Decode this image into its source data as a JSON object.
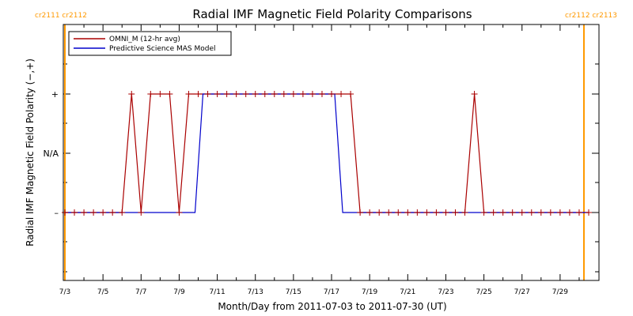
{
  "chart_data": {
    "type": "line",
    "title": "Radial IMF Magnetic Field Polarity Comparisons",
    "xlabel": "Month/Day from 2011-07-03 to 2011-07-30 (UT)",
    "ylabel": "Radial IMF Magnetic Field Polarity (−,+)",
    "xlim": [
      "2011-07-03T00:00",
      "2011-07-30T12:00"
    ],
    "x_ticks": [
      "7/3",
      "7/5",
      "7/7",
      "7/9",
      "7/11",
      "7/13",
      "7/15",
      "7/17",
      "7/19",
      "7/21",
      "7/23",
      "7/25",
      "7/27",
      "7/29"
    ],
    "y_categories": [
      "–",
      "N/A",
      "+"
    ],
    "y_tick_labels": [
      "–",
      "N/A",
      "+"
    ],
    "rotation_markers": {
      "left_label": "cr2111 cr2112",
      "right_label": "cr2112 cr2113",
      "color": "#ff9900",
      "x": [
        "2011-07-03T00:00",
        "2011-07-30T06:00"
      ]
    },
    "legend": {
      "placement": "top-left"
    },
    "series": [
      {
        "name": "OMNI_M (12-hr avg)",
        "color": "#aa0000",
        "marker": "plus",
        "points": [
          [
            "2011-07-03T00:00",
            "–"
          ],
          [
            "2011-07-03T12:00",
            "–"
          ],
          [
            "2011-07-04T00:00",
            "–"
          ],
          [
            "2011-07-04T12:00",
            "–"
          ],
          [
            "2011-07-05T00:00",
            "–"
          ],
          [
            "2011-07-05T12:00",
            "–"
          ],
          [
            "2011-07-06T00:00",
            "–"
          ],
          [
            "2011-07-06T12:00",
            "+"
          ],
          [
            "2011-07-07T00:00",
            "–"
          ],
          [
            "2011-07-07T12:00",
            "+"
          ],
          [
            "2011-07-08T00:00",
            "+"
          ],
          [
            "2011-07-08T12:00",
            "+"
          ],
          [
            "2011-07-09T00:00",
            "–"
          ],
          [
            "2011-07-09T12:00",
            "+"
          ],
          [
            "2011-07-10T00:00",
            "+"
          ],
          [
            "2011-07-10T12:00",
            "+"
          ],
          [
            "2011-07-11T00:00",
            "+"
          ],
          [
            "2011-07-11T12:00",
            "+"
          ],
          [
            "2011-07-12T00:00",
            "+"
          ],
          [
            "2011-07-12T12:00",
            "+"
          ],
          [
            "2011-07-13T00:00",
            "+"
          ],
          [
            "2011-07-13T12:00",
            "+"
          ],
          [
            "2011-07-14T00:00",
            "+"
          ],
          [
            "2011-07-14T12:00",
            "+"
          ],
          [
            "2011-07-15T00:00",
            "+"
          ],
          [
            "2011-07-15T12:00",
            "+"
          ],
          [
            "2011-07-16T00:00",
            "+"
          ],
          [
            "2011-07-16T12:00",
            "+"
          ],
          [
            "2011-07-17T00:00",
            "+"
          ],
          [
            "2011-07-17T12:00",
            "+"
          ],
          [
            "2011-07-18T00:00",
            "+"
          ],
          [
            "2011-07-18T12:00",
            "–"
          ],
          [
            "2011-07-19T00:00",
            "–"
          ],
          [
            "2011-07-19T12:00",
            "–"
          ],
          [
            "2011-07-20T00:00",
            "–"
          ],
          [
            "2011-07-20T12:00",
            "–"
          ],
          [
            "2011-07-21T00:00",
            "–"
          ],
          [
            "2011-07-21T12:00",
            "–"
          ],
          [
            "2011-07-22T00:00",
            "–"
          ],
          [
            "2011-07-22T12:00",
            "–"
          ],
          [
            "2011-07-23T00:00",
            "–"
          ],
          [
            "2011-07-23T12:00",
            "–"
          ],
          [
            "2011-07-24T00:00",
            "–"
          ],
          [
            "2011-07-24T12:00",
            "+"
          ],
          [
            "2011-07-25T00:00",
            "–"
          ],
          [
            "2011-07-25T12:00",
            "–"
          ],
          [
            "2011-07-26T00:00",
            "–"
          ],
          [
            "2011-07-26T12:00",
            "–"
          ],
          [
            "2011-07-27T00:00",
            "–"
          ],
          [
            "2011-07-27T12:00",
            "–"
          ],
          [
            "2011-07-28T00:00",
            "–"
          ],
          [
            "2011-07-28T12:00",
            "–"
          ],
          [
            "2011-07-29T00:00",
            "–"
          ],
          [
            "2011-07-29T12:00",
            "–"
          ],
          [
            "2011-07-30T00:00",
            "–"
          ],
          [
            "2011-07-30T12:00",
            "–"
          ]
        ]
      },
      {
        "name": "Predictive Science MAS Model",
        "color": "#0000cc",
        "marker": "none",
        "points": [
          [
            "2011-07-03T00:00",
            "–"
          ],
          [
            "2011-07-09T20:00",
            "–"
          ],
          [
            "2011-07-10T06:00",
            "+"
          ],
          [
            "2011-07-17T04:00",
            "+"
          ],
          [
            "2011-07-17T14:00",
            "–"
          ],
          [
            "2011-07-30T12:00",
            "–"
          ]
        ]
      }
    ]
  }
}
